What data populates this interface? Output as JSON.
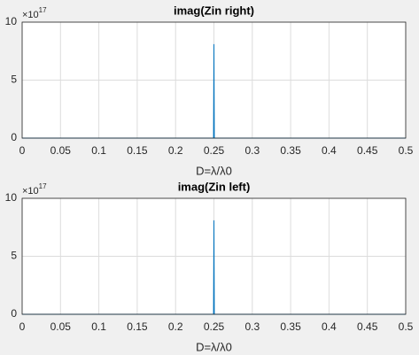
{
  "chart_data": [
    {
      "type": "line",
      "title": "imag(Zin right)",
      "x_label": "D=λ/λ0",
      "y_multiplier": {
        "base": "×10",
        "exponent": "17"
      },
      "x": [
        0,
        0.2495,
        0.25,
        0.2505,
        0.5
      ],
      "series": [
        {
          "color": "#0072bd",
          "values": [
            0,
            0,
            8.1,
            0,
            0
          ]
        }
      ],
      "xlim": [
        0,
        0.5
      ],
      "xticks": [
        0,
        0.05,
        0.1,
        0.15,
        0.2,
        0.25,
        0.3,
        0.35,
        0.4,
        0.45,
        0.5
      ],
      "ylim": [
        0,
        10
      ],
      "yticks": [
        0,
        5,
        10
      ],
      "grid": true
    },
    {
      "type": "line",
      "title": "imag(Zin left)",
      "x_label": "D=λ/λ0",
      "y_multiplier": {
        "base": "×10",
        "exponent": "17"
      },
      "x": [
        0,
        0.2495,
        0.25,
        0.2505,
        0.5
      ],
      "series": [
        {
          "color": "#0072bd",
          "values": [
            0,
            0,
            8.1,
            0,
            0
          ]
        }
      ],
      "xlim": [
        0,
        0.5
      ],
      "xticks": [
        0,
        0.05,
        0.1,
        0.15,
        0.2,
        0.25,
        0.3,
        0.35,
        0.4,
        0.45,
        0.5
      ],
      "ylim": [
        0,
        10
      ],
      "yticks": [
        0,
        5,
        10
      ],
      "grid": true
    }
  ]
}
